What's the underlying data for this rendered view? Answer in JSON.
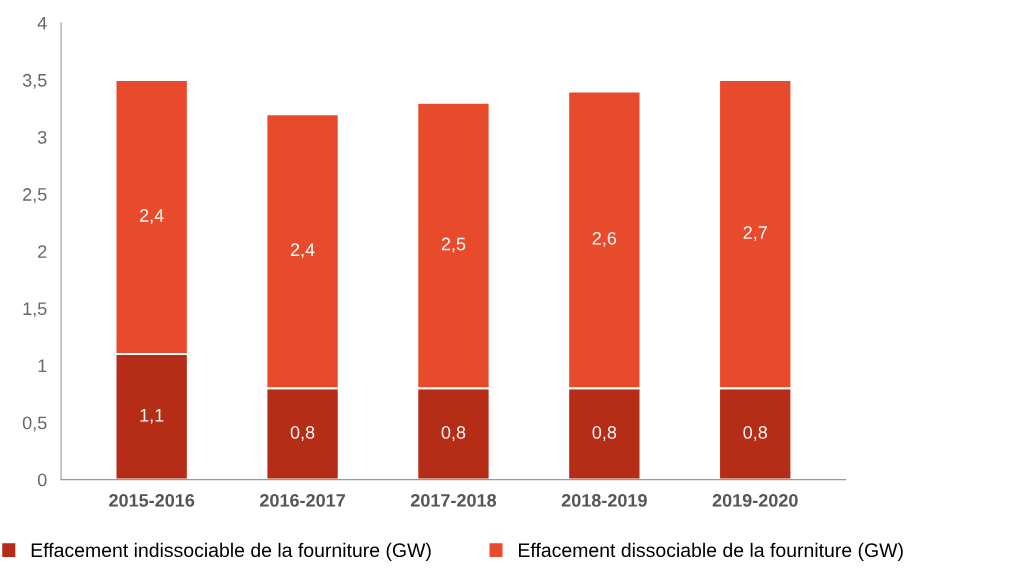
{
  "chart_data": {
    "type": "bar",
    "stacked": true,
    "categories": [
      "2015-2016",
      "2016-2017",
      "2017-2018",
      "2018-2019",
      "2019-2020"
    ],
    "series": [
      {
        "name": "Effacement indissociable de la fourniture (GW)",
        "color": "#b52d16",
        "values": [
          1.1,
          0.8,
          0.8,
          0.8,
          0.8
        ],
        "value_labels": [
          "1,1",
          "0,8",
          "0,8",
          "0,8",
          "0,8"
        ]
      },
      {
        "name": "Effacement dissociable de la fourniture (GW)",
        "color": "#e84b2c",
        "values": [
          2.4,
          2.4,
          2.5,
          2.6,
          2.7
        ],
        "value_labels": [
          "2,4",
          "2,4",
          "2,5",
          "2,6",
          "2,7"
        ]
      }
    ],
    "ylim": [
      0,
      4
    ],
    "yticks": [
      0,
      {
        "value": 0.5,
        "label": "0,5"
      },
      1,
      {
        "value": 1.5,
        "label": "1,5"
      },
      2,
      {
        "value": 2.5,
        "label": "2,5"
      },
      3,
      {
        "value": 3.5,
        "label": "3,5"
      },
      4
    ],
    "grid": false,
    "legend": "bottom"
  }
}
